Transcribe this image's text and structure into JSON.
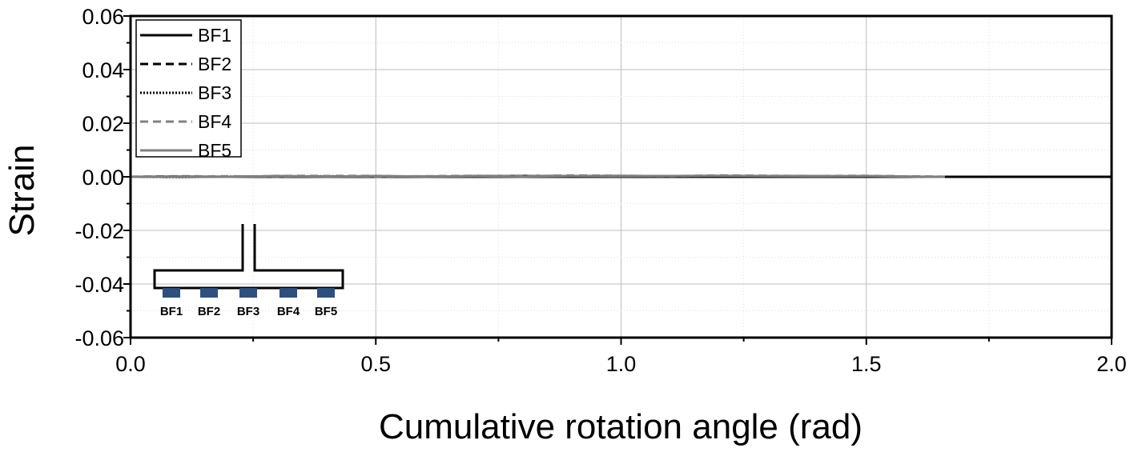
{
  "chart_data": {
    "type": "line",
    "title": "",
    "xlabel": "Cumulative rotation angle (rad)",
    "ylabel": "Strain",
    "xlim": [
      0.0,
      2.0
    ],
    "ylim": [
      -0.06,
      0.06
    ],
    "xticks": [
      0.0,
      0.5,
      1.0,
      1.5,
      2.0
    ],
    "xtick_labels": [
      "0.0",
      "0.5",
      "1.0",
      "1.5",
      "2.0"
    ],
    "yticks": [
      -0.06,
      -0.04,
      -0.02,
      0.0,
      0.02,
      0.04,
      0.06
    ],
    "ytick_labels": [
      "-0.06",
      "-0.04",
      "-0.02",
      "0.00",
      "0.02",
      "0.04",
      "0.06"
    ],
    "grid": true,
    "legend_position": "top-left",
    "series": [
      {
        "name": "BF1",
        "color": "#000000",
        "style": "solid",
        "x": [
          0.0,
          0.1,
          0.2,
          0.3,
          0.4,
          0.5,
          0.6,
          0.7,
          0.8,
          0.9,
          1.0,
          1.1,
          1.2,
          1.3,
          1.4,
          1.5,
          1.6,
          1.7,
          1.8,
          1.9,
          2.0
        ],
        "values": [
          0.0,
          0.0001,
          0.0,
          0.0002,
          0.0001,
          0.0002,
          0.0001,
          0.0002,
          0.0003,
          0.0002,
          0.0003,
          0.0002,
          0.0001,
          0.0003,
          0.0002,
          0.0001,
          0.0,
          0.0,
          0.0,
          0.0,
          0.0
        ]
      },
      {
        "name": "BF2",
        "color": "#000000",
        "style": "dashed",
        "x": [
          0.0,
          0.1,
          0.2,
          0.3,
          0.4,
          0.5,
          0.6,
          0.7,
          0.8,
          0.9,
          1.0,
          1.1,
          1.2,
          1.3,
          1.4,
          1.5,
          1.6,
          1.66
        ],
        "values": [
          0.0,
          0.0002,
          0.0001,
          0.0002,
          0.0003,
          0.0002,
          0.0001,
          0.0003,
          0.0002,
          0.0004,
          0.0003,
          0.0002,
          0.0004,
          0.0003,
          0.0002,
          0.0003,
          0.0001,
          0.0
        ]
      },
      {
        "name": "BF3",
        "color": "#000000",
        "style": "dotted",
        "x": [
          0.0,
          0.1,
          0.2,
          0.3,
          0.4,
          0.5,
          0.6,
          0.7,
          0.8,
          0.9,
          1.0,
          1.1,
          1.2,
          1.3,
          1.4,
          1.5,
          1.6,
          1.66
        ],
        "values": [
          0.0,
          -0.0001,
          0.0001,
          0.0,
          0.0002,
          0.0001,
          0.0,
          0.0002,
          0.0001,
          0.0003,
          0.0002,
          0.0001,
          0.0003,
          0.0002,
          0.0001,
          0.0002,
          0.0,
          0.0
        ]
      },
      {
        "name": "BF4",
        "color": "#808080",
        "style": "dashed",
        "x": [
          0.0,
          0.1,
          0.2,
          0.3,
          0.4,
          0.5,
          0.6,
          0.7,
          0.8,
          0.9,
          1.0,
          1.1,
          1.2,
          1.3,
          1.4,
          1.5,
          1.6,
          1.66
        ],
        "values": [
          0.0,
          0.0001,
          0.0002,
          0.0001,
          0.0003,
          0.0001,
          0.0002,
          0.0004,
          0.0002,
          0.0005,
          0.0004,
          0.0002,
          0.0005,
          0.0004,
          0.0003,
          0.0004,
          0.0001,
          0.0
        ]
      },
      {
        "name": "BF5",
        "color": "#808080",
        "style": "solid",
        "x": [
          0.0,
          0.1,
          0.2,
          0.3,
          0.4,
          0.5,
          0.6,
          0.7,
          0.8,
          0.9,
          1.0,
          1.1,
          1.2,
          1.3,
          1.4,
          1.5,
          1.6,
          1.66
        ],
        "values": [
          0.0,
          0.0001,
          0.0,
          0.0002,
          0.0001,
          0.0002,
          0.0001,
          0.0002,
          0.0001,
          0.0003,
          0.0002,
          0.0003,
          0.0004,
          0.0003,
          0.0002,
          0.0003,
          0.0001,
          0.0
        ]
      }
    ],
    "inset": {
      "labels": [
        "BF1",
        "BF2",
        "BF3",
        "BF4",
        "BF5"
      ],
      "gauge_color": "#2e4f7e"
    }
  }
}
